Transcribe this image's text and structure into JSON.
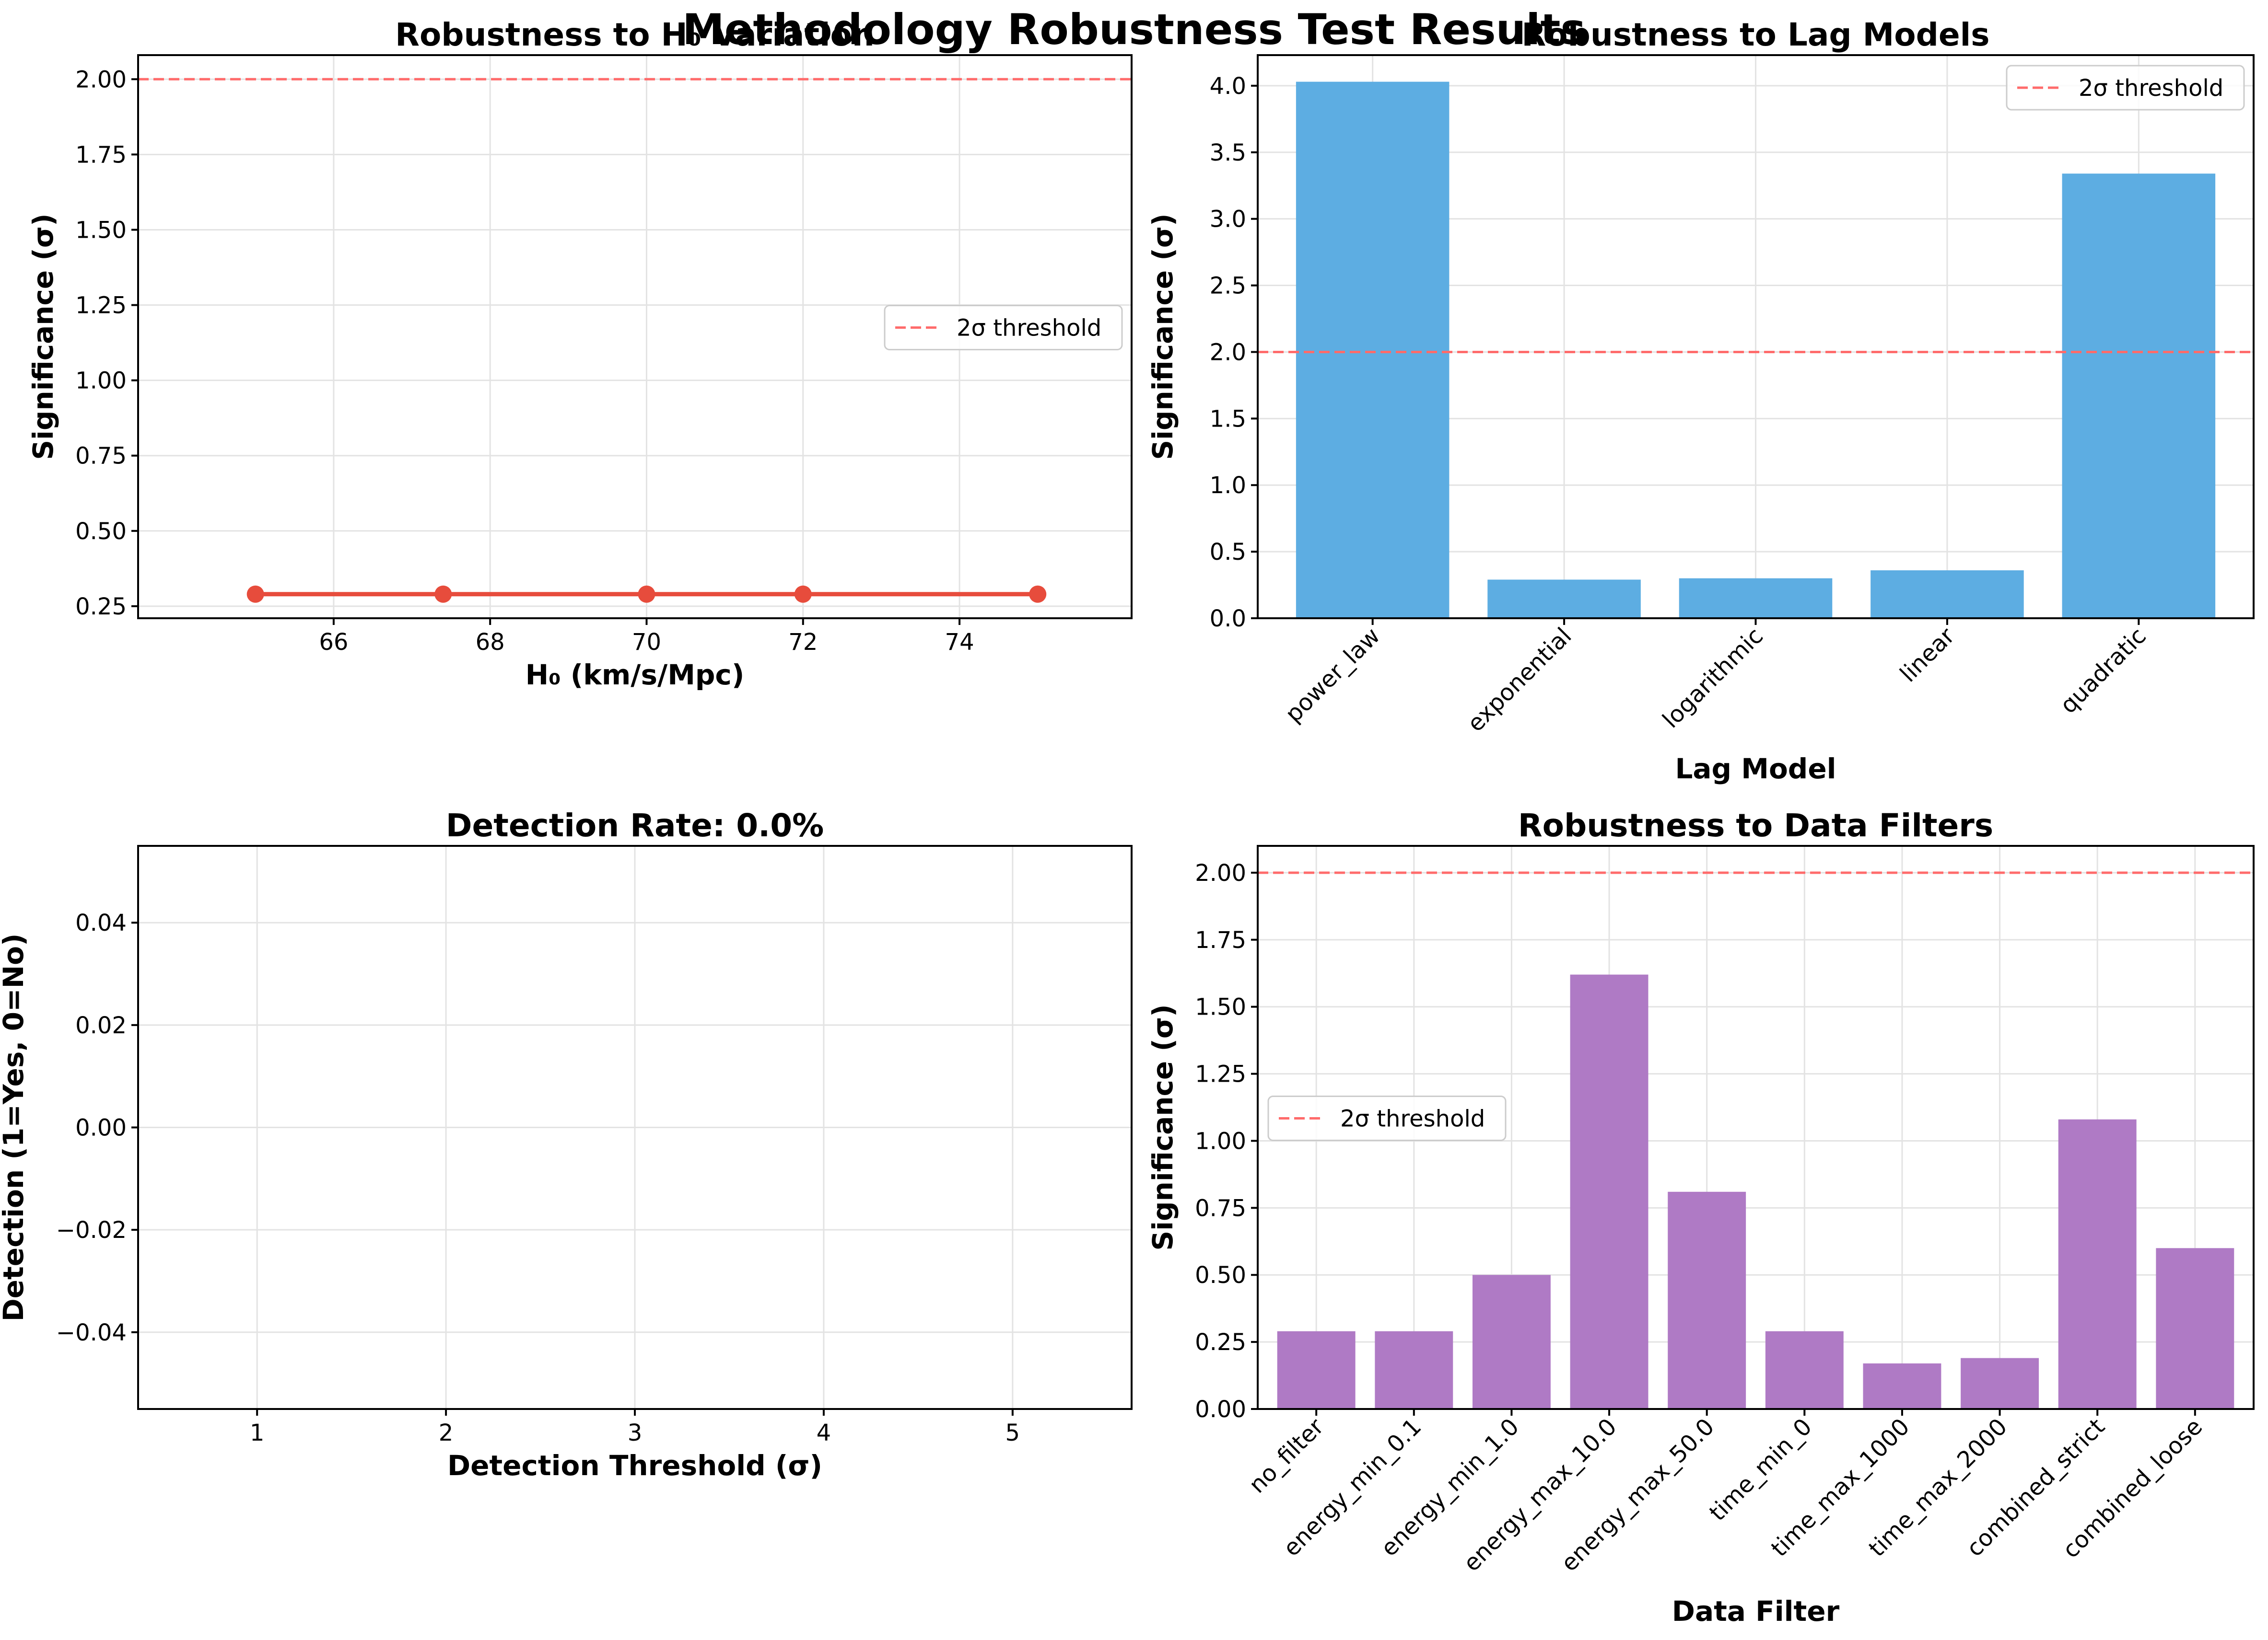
{
  "figure": {
    "suptitle": "Methodology Robustness Test Results"
  },
  "colors": {
    "line": "#e74c3c",
    "bar_blue": "#5dade2",
    "bar_purple": "#af7ac5",
    "threshold": "#ff6b6b",
    "grid": "#e3e3e3"
  },
  "chart_data": [
    {
      "type": "line",
      "title": "Robustness to H₀ Variation",
      "xlabel": "H₀ (km/s/Mpc)",
      "ylabel": "Significance (σ)",
      "x": [
        65,
        67.4,
        70,
        72,
        75
      ],
      "values": [
        0.29,
        0.29,
        0.29,
        0.29,
        0.29
      ],
      "xlim": [
        63.5,
        76.2
      ],
      "ylim": [
        0.21,
        2.08
      ],
      "xticks": [
        66,
        68,
        70,
        72,
        74
      ],
      "yticks": [
        0.25,
        0.5,
        0.75,
        1.0,
        1.25,
        1.5,
        1.75,
        2.0
      ],
      "ytick_labels": [
        "0.25",
        "0.50",
        "0.75",
        "1.00",
        "1.25",
        "1.50",
        "1.75",
        "2.00"
      ],
      "threshold": 2.0,
      "legend": {
        "label": "2σ threshold",
        "position": "center-right"
      },
      "grid": true
    },
    {
      "type": "bar",
      "title": "Robustness to Lag Models",
      "xlabel": "Lag Model",
      "ylabel": "Significance (σ)",
      "categories": [
        "power_law",
        "exponential",
        "logarithmic",
        "linear",
        "quadratic"
      ],
      "values": [
        4.03,
        0.29,
        0.3,
        0.36,
        3.34
      ],
      "ylim": [
        0,
        4.23
      ],
      "yticks": [
        0,
        0.5,
        1.0,
        1.5,
        2.0,
        2.5,
        3.0,
        3.5,
        4.0
      ],
      "ytick_labels": [
        "0.0",
        "0.5",
        "1.0",
        "1.5",
        "2.0",
        "2.5",
        "3.0",
        "3.5",
        "4.0"
      ],
      "threshold": 2.0,
      "legend": {
        "label": "2σ threshold",
        "position": "top-right"
      },
      "grid": true
    },
    {
      "type": "line",
      "title": "Detection Rate: 0.0%",
      "xlabel": "Detection Threshold (σ)",
      "ylabel": "Detection (1=Yes, 0=No)",
      "x": [
        1,
        2,
        3,
        4,
        5
      ],
      "values": [
        0,
        0,
        0,
        0,
        0
      ],
      "xlim": [
        0.37,
        5.63
      ],
      "ylim": [
        -0.055,
        0.055
      ],
      "xticks": [
        1,
        2,
        3,
        4,
        5
      ],
      "yticks": [
        -0.04,
        -0.02,
        0.0,
        0.02,
        0.04
      ],
      "ytick_labels": [
        "−0.04",
        "−0.02",
        "0.00",
        "0.02",
        "0.04"
      ],
      "grid": true
    },
    {
      "type": "bar",
      "title": "Robustness to Data Filters",
      "xlabel": "Data Filter",
      "ylabel": "Significance (σ)",
      "categories": [
        "no_filter",
        "energy_min_0.1",
        "energy_min_1.0",
        "energy_max_10.0",
        "energy_max_50.0",
        "time_min_0",
        "time_max_1000",
        "time_max_2000",
        "combined_strict",
        "combined_loose"
      ],
      "values": [
        0.29,
        0.29,
        0.5,
        1.62,
        0.81,
        0.29,
        0.17,
        0.19,
        1.08,
        0.6
      ],
      "ylim": [
        0,
        2.1
      ],
      "yticks": [
        0,
        0.25,
        0.5,
        0.75,
        1.0,
        1.25,
        1.5,
        1.75,
        2.0
      ],
      "ytick_labels": [
        "0.00",
        "0.25",
        "0.50",
        "0.75",
        "1.00",
        "1.25",
        "1.50",
        "1.75",
        "2.00"
      ],
      "threshold": 2.0,
      "legend": {
        "label": "2σ threshold",
        "position": "center-left"
      },
      "grid": true
    }
  ]
}
